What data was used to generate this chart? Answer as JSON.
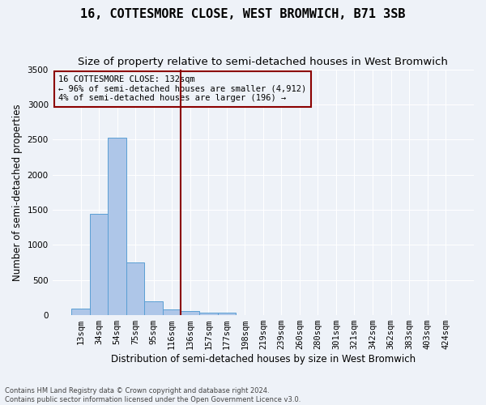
{
  "title": "16, COTTESMORE CLOSE, WEST BROMWICH, B71 3SB",
  "subtitle": "Size of property relative to semi-detached houses in West Bromwich",
  "xlabel": "Distribution of semi-detached houses by size in West Bromwich",
  "ylabel": "Number of semi-detached properties",
  "footnote1": "Contains HM Land Registry data © Crown copyright and database right 2024.",
  "footnote2": "Contains public sector information licensed under the Open Government Licence v3.0.",
  "annotation_title": "16 COTTESMORE CLOSE: 132sqm",
  "annotation_line1": "← 96% of semi-detached houses are smaller (4,912)",
  "annotation_line2": "4% of semi-detached houses are larger (196) →",
  "bin_labels": [
    "13sqm",
    "34sqm",
    "54sqm",
    "75sqm",
    "95sqm",
    "116sqm",
    "136sqm",
    "157sqm",
    "177sqm",
    "198sqm",
    "219sqm",
    "239sqm",
    "260sqm",
    "280sqm",
    "301sqm",
    "321sqm",
    "342sqm",
    "362sqm",
    "383sqm",
    "403sqm",
    "424sqm"
  ],
  "counts": [
    90,
    1440,
    2530,
    750,
    195,
    85,
    60,
    40,
    35,
    0,
    0,
    0,
    0,
    0,
    0,
    0,
    0,
    0,
    0,
    0,
    0
  ],
  "bar_color": "#aec6e8",
  "bar_edge_color": "#5a9fd4",
  "vline_color": "#8b0000",
  "vline_bin": 6,
  "ylim": [
    0,
    3500
  ],
  "yticks": [
    0,
    500,
    1000,
    1500,
    2000,
    2500,
    3000,
    3500
  ],
  "bg_color": "#eef2f8",
  "grid_color": "#ffffff",
  "title_fontsize": 11,
  "subtitle_fontsize": 9.5,
  "label_fontsize": 8.5,
  "tick_fontsize": 7.5,
  "annot_fontsize": 7.5,
  "footnote_fontsize": 6
}
